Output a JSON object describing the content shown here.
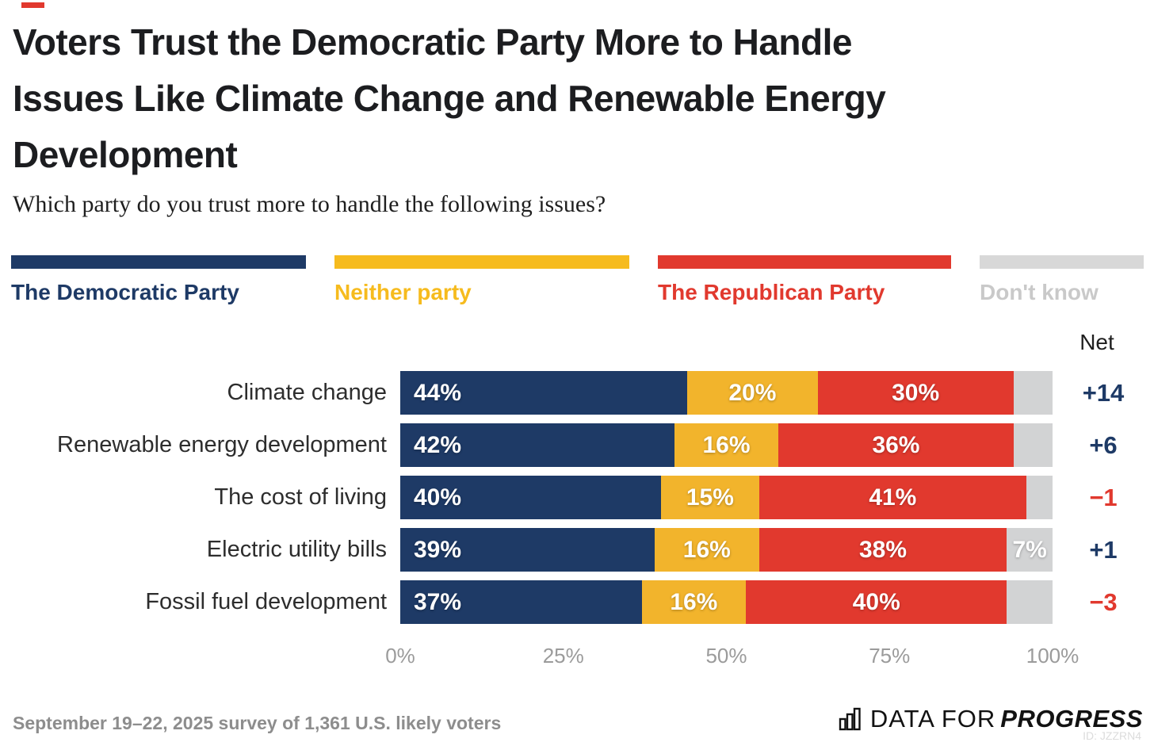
{
  "title_lines": [
    "Voters Trust the Democratic Party More to Handle",
    "Issues Like Climate Change and Renewable Energy",
    "Development"
  ],
  "subtitle": "Which party do you trust more to handle the following issues?",
  "legend": [
    {
      "label": "The Democratic Party",
      "color": "#1e3a66",
      "text_color": "#1e3a66"
    },
    {
      "label": "Neither party",
      "color": "#f6bb1e",
      "text_color": "#f6bb1e"
    },
    {
      "label": "The Republican Party",
      "color": "#e1392e",
      "text_color": "#e1392e"
    },
    {
      "label": "Don't know",
      "color": "#d8d8d8",
      "text_color": "#c9c9c9"
    }
  ],
  "net_header": "Net",
  "chart_data": {
    "type": "bar",
    "stacked": true,
    "orientation": "horizontal",
    "xlim": [
      0,
      100
    ],
    "x_ticks": [
      "0%",
      "25%",
      "50%",
      "75%",
      "100%"
    ],
    "legend_position": "top",
    "categories": [
      "Climate change",
      "Renewable energy development",
      "The cost of living",
      "Electric utility bills",
      "Fossil fuel development"
    ],
    "series": [
      {
        "name": "The Democratic Party",
        "color": "#1e3a66",
        "values": [
          44,
          42,
          40,
          39,
          37
        ],
        "labels": [
          "44%",
          "42%",
          "40%",
          "39%",
          "37%"
        ]
      },
      {
        "name": "Neither party",
        "color": "#f2b42c",
        "values": [
          20,
          16,
          15,
          16,
          16
        ],
        "labels": [
          "20%",
          "16%",
          "15%",
          "16%",
          "16%"
        ]
      },
      {
        "name": "The Republican Party",
        "color": "#e1392e",
        "values": [
          30,
          36,
          41,
          38,
          40
        ],
        "labels": [
          "30%",
          "36%",
          "41%",
          "38%",
          "40%"
        ]
      },
      {
        "name": "Don't know",
        "color": "#d2d3d4",
        "values": [
          6,
          6,
          4,
          7,
          7
        ],
        "labels": [
          "",
          "",
          "",
          "7%",
          ""
        ]
      }
    ],
    "net": [
      {
        "value": "+14",
        "sentiment": "positive"
      },
      {
        "value": "+6",
        "sentiment": "positive"
      },
      {
        "value": "−1",
        "sentiment": "negative"
      },
      {
        "value": "+1",
        "sentiment": "positive"
      },
      {
        "value": "−3",
        "sentiment": "negative"
      }
    ],
    "net_positive_color": "#1e3a66",
    "net_negative_color": "#e1392e"
  },
  "footer": {
    "source": "September 19–22, 2025 survey of 1,361 U.S. likely voters",
    "brand_regular": "DATA FOR",
    "brand_bold": "PROGRESS",
    "id": "ID: JZZRN4"
  }
}
